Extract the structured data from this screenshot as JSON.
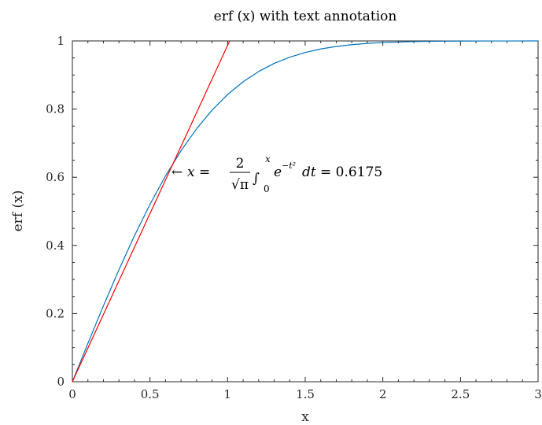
{
  "chart_data": {
    "type": "line",
    "title": "erf (x) with text annotation",
    "xlabel": "x",
    "ylabel": "erf (x)",
    "xlim": [
      0,
      3
    ],
    "ylim": [
      0,
      1
    ],
    "grid": false,
    "x_ticks": [
      {
        "value": 0,
        "label": "0"
      },
      {
        "value": 0.5,
        "label": "0.5"
      },
      {
        "value": 1,
        "label": "1"
      },
      {
        "value": 1.5,
        "label": "1.5"
      },
      {
        "value": 2,
        "label": "2"
      },
      {
        "value": 2.5,
        "label": "2.5"
      },
      {
        "value": 3,
        "label": "3"
      }
    ],
    "y_ticks": [
      {
        "value": 0,
        "label": "0"
      },
      {
        "value": 0.2,
        "label": "0.2"
      },
      {
        "value": 0.4,
        "label": "0.4"
      },
      {
        "value": 0.6,
        "label": "0.6"
      },
      {
        "value": 0.8,
        "label": "0.8"
      },
      {
        "value": 1,
        "label": "1"
      }
    ],
    "series": [
      {
        "color": "#0072bd",
        "x": [
          0,
          0.1,
          0.2,
          0.3,
          0.4,
          0.5,
          0.6,
          0.7,
          0.8,
          0.9,
          1.0,
          1.1,
          1.2,
          1.3,
          1.4,
          1.5,
          1.6,
          1.7,
          1.8,
          1.9,
          2.0,
          2.2,
          2.4,
          2.6,
          2.8,
          3.0
        ],
        "y": [
          0,
          0.1125,
          0.2227,
          0.3286,
          0.4284,
          0.5205,
          0.6039,
          0.6778,
          0.7421,
          0.7969,
          0.8427,
          0.8802,
          0.9103,
          0.934,
          0.9523,
          0.9661,
          0.9763,
          0.9838,
          0.9891,
          0.9928,
          0.9953,
          0.9981,
          0.9993,
          0.9998,
          0.9999,
          1.0
        ]
      },
      {
        "color": "#ff0000",
        "x": [
          0,
          1.0133
        ],
        "y": [
          0,
          1.0
        ]
      }
    ],
    "annotation": {
      "x": 0.6175,
      "y": 0.6175,
      "arrow": "←",
      "lhs": "x =",
      "frac_num": "2",
      "frac_den": "√π",
      "integral": "∫",
      "upper": "x",
      "lower": "0",
      "base": "e",
      "exponent": "−t²",
      "differential": "dt",
      "rhs": "= 0.6175"
    }
  }
}
